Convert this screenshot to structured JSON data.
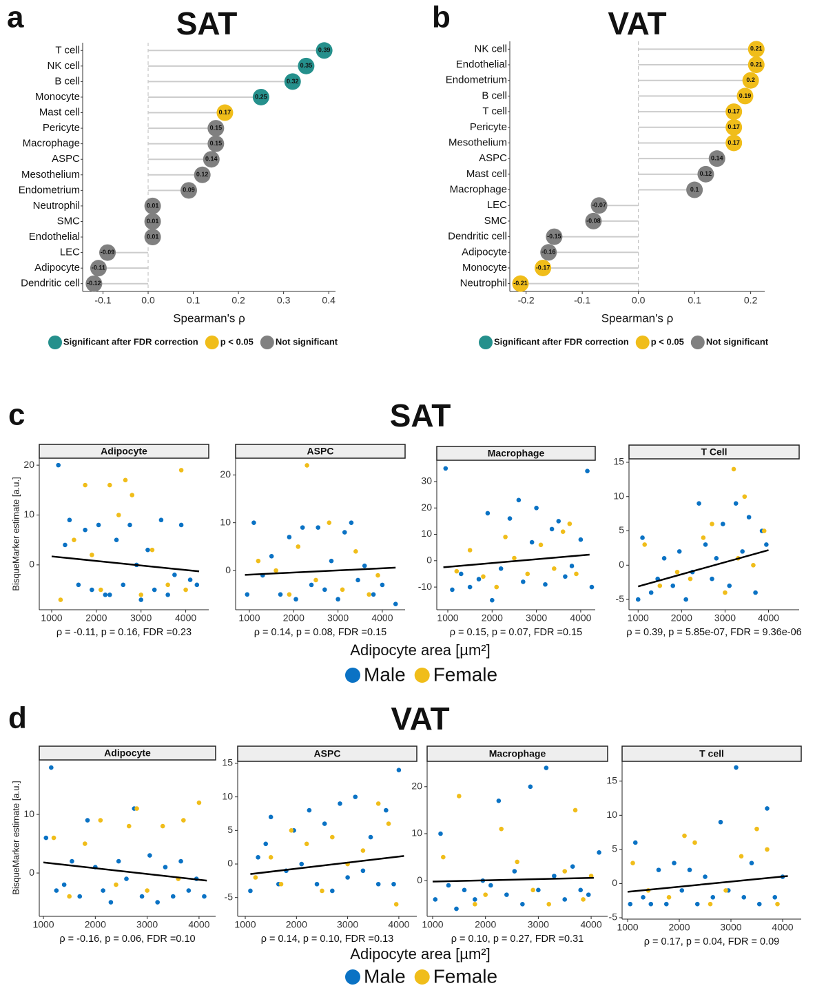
{
  "sections": [
    {
      "letter": "c",
      "title": "SAT",
      "x_label": "Adipocyte area [µm²]",
      "y_label": "BisqueMarker estimate [a.u.]"
    },
    {
      "letter": "d",
      "title": "VAT",
      "x_label": "Adipocyte area [µm²]",
      "y_label": "BisqueMarker estimate [a.u.]"
    }
  ],
  "chart_data": [
    {
      "type": "lollipop",
      "letter": "a",
      "title": "SAT",
      "x_label": "Spearman's ρ",
      "categories": [
        "T cell",
        "NK cell",
        "B cell",
        "Monocyte",
        "Mast cell",
        "Pericyte",
        "Macrophage",
        "ASPC",
        "Mesothelium",
        "Endometrium",
        "Neutrophil",
        "SMC",
        "Endothelial",
        "LEC",
        "Adipocyte",
        "Dendritic cell"
      ],
      "values": [
        0.39,
        0.35,
        0.32,
        0.25,
        0.17,
        0.15,
        0.15,
        0.14,
        0.12,
        0.09,
        0.01,
        0.01,
        0.01,
        -0.09,
        -0.11,
        -0.12
      ],
      "point_colors": [
        "#25908c",
        "#25908c",
        "#25908c",
        "#25908c",
        "#f0bd1a",
        "#808080",
        "#808080",
        "#808080",
        "#808080",
        "#808080",
        "#808080",
        "#808080",
        "#808080",
        "#808080",
        "#808080",
        "#808080"
      ],
      "xlim": [
        -0.145,
        0.415
      ],
      "xticks": [
        -0.1,
        {
          "value": 0,
          "label": "0.0"
        },
        0.1,
        0.2,
        0.3,
        0.4
      ],
      "legend": [
        {
          "label": "Significant after FDR correction",
          "color": "#25908c"
        },
        {
          "label": "p < 0.05",
          "color": "#f0bd1a"
        },
        {
          "label": "Not significant",
          "color": "#808080"
        }
      ]
    },
    {
      "type": "lollipop",
      "letter": "b",
      "title": "VAT",
      "x_label": "Spearman's ρ",
      "categories": [
        "NK cell",
        "Endothelial",
        "Endometrium",
        "B cell",
        "T cell",
        "Pericyte",
        "Mesothelium",
        "ASPC",
        "Mast cell",
        "Macrophage",
        "LEC",
        "SMC",
        "Dendritic cell",
        "Adipocyte",
        "Monocyte",
        "Neutrophil"
      ],
      "values": [
        0.21,
        0.21,
        0.2,
        0.19,
        0.17,
        0.17,
        0.17,
        0.14,
        0.12,
        0.1,
        -0.07,
        -0.08,
        -0.15,
        -0.16,
        -0.17,
        -0.21
      ],
      "point_colors": [
        "#f0bd1a",
        "#f0bd1a",
        "#f0bd1a",
        "#f0bd1a",
        "#f0bd1a",
        "#f0bd1a",
        "#f0bd1a",
        "#808080",
        "#808080",
        "#808080",
        "#808080",
        "#808080",
        "#808080",
        "#808080",
        "#f0bd1a",
        "#f0bd1a"
      ],
      "xlim": [
        -0.229,
        0.225
      ],
      "xticks": [
        -0.2,
        -0.1,
        {
          "value": 0,
          "label": "0.0"
        },
        0.1,
        0.2
      ],
      "legend": [
        {
          "label": "Significant after FDR correction",
          "color": "#25908c"
        },
        {
          "label": "p < 0.05",
          "color": "#f0bd1a"
        },
        {
          "label": "Not significant",
          "color": "#808080"
        }
      ]
    },
    {
      "type": "scatter",
      "title": "Adipocyte",
      "annotation": "ρ = -0.11, p = 0.16, FDR =0.23",
      "xlim": [
        723,
        4515
      ],
      "ylim": [
        -9,
        21.4
      ],
      "xticks": [
        1000,
        2000,
        3000,
        4000
      ],
      "yticks": [
        0,
        10,
        20
      ],
      "series": [
        {
          "name": "Male",
          "color": "#0a72c4",
          "x": [
            1150,
            1300,
            1400,
            1600,
            1750,
            1900,
            2050,
            2200,
            2300,
            2450,
            2600,
            2750,
            2900,
            3000,
            3150,
            3300,
            3450,
            3600,
            3750,
            3900,
            4100,
            4250
          ],
          "values": [
            20,
            4,
            9,
            -4,
            7,
            -5,
            8,
            -6,
            -6,
            5,
            -4,
            8,
            0,
            -7,
            3,
            -5,
            9,
            -6,
            -2,
            8,
            -3,
            -4
          ]
        },
        {
          "name": "Female",
          "color": "#f0bd1a",
          "x": [
            1200,
            1500,
            1750,
            1900,
            2100,
            2300,
            2500,
            2650,
            2800,
            3000,
            3250,
            3600,
            3900,
            4000
          ],
          "values": [
            -7,
            5,
            16,
            2,
            -5,
            16,
            10,
            17,
            14,
            -6,
            3,
            -4,
            19,
            -5
          ]
        }
      ],
      "fit": {
        "x": [
          1000,
          4300
        ],
        "y": [
          1.7,
          -1.3
        ]
      }
    },
    {
      "type": "scatter",
      "title": "ASPC",
      "annotation": "ρ = 0.14, p = 0.08, FDR =0.15",
      "xlim": [
        689,
        4514
      ],
      "ylim": [
        -8.2,
        23.5
      ],
      "xticks": [
        1000,
        2000,
        3000,
        4000
      ],
      "yticks": [
        0,
        10,
        20
      ],
      "series": [
        {
          "name": "Male",
          "color": "#0a72c4",
          "x": [
            950,
            1100,
            1300,
            1500,
            1700,
            1900,
            2050,
            2200,
            2400,
            2550,
            2700,
            2850,
            3000,
            3150,
            3300,
            3450,
            3600,
            3800,
            4000,
            4300
          ],
          "values": [
            -5,
            10,
            -1,
            3,
            -5,
            7,
            -6,
            9,
            -3,
            9,
            -4,
            2,
            -6,
            8,
            10,
            -2,
            1,
            -5,
            -3,
            -7
          ]
        },
        {
          "name": "Female",
          "color": "#f0bd1a",
          "x": [
            1200,
            1600,
            1900,
            2100,
            2300,
            2500,
            2800,
            3100,
            3400,
            3700,
            3900
          ],
          "values": [
            2,
            0,
            -5,
            5,
            22,
            -2,
            10,
            -4,
            4,
            -5,
            -1
          ]
        }
      ],
      "fit": {
        "x": [
          900,
          4300
        ],
        "y": [
          -0.9,
          0.6
        ]
      }
    },
    {
      "type": "scatter",
      "title": "Macrophage",
      "annotation": "ρ = 0.15, p = 0.07, FDR =0.15",
      "xlim": [
        751,
        4328
      ],
      "ylim": [
        -18.6,
        38.1
      ],
      "xticks": [
        1000,
        2000,
        3000,
        4000
      ],
      "yticks": [
        -10,
        0,
        10,
        20,
        30
      ],
      "series": [
        {
          "name": "Male",
          "color": "#0a72c4",
          "x": [
            950,
            1100,
            1300,
            1500,
            1700,
            1900,
            2000,
            2200,
            2400,
            2600,
            2700,
            2900,
            3000,
            3200,
            3350,
            3500,
            3650,
            3800,
            4000,
            4150,
            4250
          ],
          "values": [
            35,
            -11,
            -5,
            -10,
            -7,
            18,
            -15,
            -3,
            16,
            23,
            -8,
            7,
            20,
            -9,
            12,
            15,
            -6,
            -2,
            8,
            34,
            -10
          ]
        },
        {
          "name": "Female",
          "color": "#f0bd1a",
          "x": [
            1200,
            1500,
            1800,
            2100,
            2300,
            2500,
            2800,
            3100,
            3400,
            3600,
            3750,
            3900
          ],
          "values": [
            -4,
            4,
            -6,
            -10,
            9,
            1,
            -5,
            6,
            -3,
            11,
            14,
            -5
          ]
        }
      ],
      "fit": {
        "x": [
          900,
          4200
        ],
        "y": [
          -2.5,
          2.3
        ]
      }
    },
    {
      "type": "scatter",
      "title": "T Cell",
      "annotation": "ρ = 0.39, p = 5.85e-07, FDR = 9.36e-06",
      "xlim": [
        790,
        4705
      ],
      "ylim": [
        -6.5,
        15.5
      ],
      "xticks": [
        1000,
        2000,
        3000,
        4000
      ],
      "yticks": [
        -5,
        0,
        5,
        10,
        15
      ],
      "series": [
        {
          "name": "Male",
          "color": "#0a72c4",
          "x": [
            1000,
            1100,
            1300,
            1450,
            1600,
            1800,
            1950,
            2100,
            2250,
            2400,
            2550,
            2700,
            2800,
            2950,
            3100,
            3250,
            3400,
            3550,
            3700,
            3850,
            3950
          ],
          "values": [
            -5,
            4,
            -4,
            -2,
            1,
            -3,
            2,
            -5,
            -1,
            9,
            3,
            -2,
            1,
            6,
            -3,
            9,
            2,
            7,
            -4,
            5,
            3
          ]
        },
        {
          "name": "Female",
          "color": "#f0bd1a",
          "x": [
            1150,
            1500,
            1900,
            2200,
            2500,
            2700,
            3000,
            3200,
            3300,
            3450,
            3650,
            3900
          ],
          "values": [
            3,
            -3,
            -1,
            -2,
            4,
            6,
            -4,
            14,
            1,
            10,
            0,
            5
          ]
        }
      ],
      "fit": {
        "x": [
          1000,
          4000
        ],
        "y": [
          -3.1,
          2.2
        ]
      }
    },
    {
      "type": "scatter",
      "title": "Adipocyte",
      "annotation": "ρ = -0.16, p = 0.06, FDR =0.10",
      "xlim": [
        920,
        4320
      ],
      "ylim": [
        -7.4,
        19.3
      ],
      "xticks": [
        1000,
        2000,
        3000,
        4000
      ],
      "yticks": [
        0,
        10
      ],
      "series": [
        {
          "name": "Male",
          "color": "#0a72c4",
          "x": [
            1050,
            1150,
            1250,
            1400,
            1550,
            1700,
            1850,
            2000,
            2150,
            2300,
            2450,
            2600,
            2750,
            2900,
            3050,
            3200,
            3350,
            3500,
            3650,
            3800,
            3950,
            4100
          ],
          "values": [
            6,
            18,
            -3,
            -2,
            2,
            -4,
            9,
            1,
            -3,
            -5,
            2,
            -1,
            11,
            -4,
            3,
            -5,
            1,
            -4,
            2,
            -3,
            -1,
            -4
          ]
        },
        {
          "name": "Female",
          "color": "#f0bd1a",
          "x": [
            1200,
            1500,
            1800,
            2100,
            2400,
            2650,
            2800,
            3000,
            3300,
            3600,
            3700,
            4000
          ],
          "values": [
            6,
            -4,
            5,
            9,
            -2,
            8,
            11,
            -3,
            8,
            -1,
            9,
            12
          ]
        }
      ],
      "fit": {
        "x": [
          1000,
          4150
        ],
        "y": [
          1.8,
          -1.3
        ]
      }
    },
    {
      "type": "scatter",
      "title": "ASPC",
      "annotation": "ρ = 0.14, p = 0.10, FDR =0.13",
      "xlim": [
        852,
        4351
      ],
      "ylim": [
        -7.8,
        15.3
      ],
      "xticks": [
        1000,
        2000,
        3000,
        4000
      ],
      "yticks": [
        -5,
        0,
        5,
        10,
        15
      ],
      "series": [
        {
          "name": "Male",
          "color": "#0a72c4",
          "x": [
            1100,
            1250,
            1400,
            1500,
            1650,
            1800,
            1950,
            2100,
            2250,
            2400,
            2550,
            2700,
            2850,
            3000,
            3150,
            3300,
            3450,
            3600,
            3750,
            3900,
            4000
          ],
          "values": [
            -4,
            1,
            3,
            7,
            -3,
            -1,
            5,
            0,
            8,
            -3,
            6,
            -4,
            9,
            -2,
            10,
            -1,
            4,
            -3,
            8,
            -3,
            14
          ]
        },
        {
          "name": "Female",
          "color": "#f0bd1a",
          "x": [
            1200,
            1500,
            1700,
            1900,
            2200,
            2500,
            2700,
            3000,
            3300,
            3600,
            3800,
            3950
          ],
          "values": [
            -2,
            1,
            -3,
            5,
            3,
            -4,
            4,
            0,
            2,
            9,
            6,
            -6
          ]
        }
      ],
      "fit": {
        "x": [
          1100,
          4100
        ],
        "y": [
          -1.5,
          1.2
        ]
      }
    },
    {
      "type": "scatter",
      "title": "Macrophage",
      "annotation": "ρ = 0.10, p = 0.27, FDR =0.31",
      "xlim": [
        896,
        4312
      ],
      "ylim": [
        -7.6,
        25.4
      ],
      "xticks": [
        1000,
        2000,
        3000,
        4000
      ],
      "yticks": [
        0,
        10,
        20
      ],
      "series": [
        {
          "name": "Male",
          "color": "#0a72c4",
          "x": [
            1050,
            1150,
            1300,
            1450,
            1600,
            1800,
            1950,
            2100,
            2250,
            2400,
            2550,
            2700,
            2850,
            3000,
            3150,
            3300,
            3500,
            3650,
            3800,
            3950,
            4150
          ],
          "values": [
            -4,
            10,
            -1,
            -6,
            -2,
            -4,
            0,
            -1,
            17,
            -3,
            2,
            -5,
            20,
            -2,
            24,
            1,
            -4,
            3,
            -2,
            -3,
            6
          ]
        },
        {
          "name": "Female",
          "color": "#f0bd1a",
          "x": [
            1200,
            1500,
            1800,
            2000,
            2300,
            2600,
            2900,
            3200,
            3500,
            3700,
            3850,
            4000
          ],
          "values": [
            5,
            18,
            -5,
            -3,
            11,
            4,
            -2,
            -5,
            2,
            15,
            -4,
            1
          ]
        }
      ],
      "fit": {
        "x": [
          1000,
          4050
        ],
        "y": [
          -0.2,
          0.6
        ]
      }
    },
    {
      "type": "scatter",
      "title": "T cell",
      "annotation": "ρ = 0.17, p = 0.04, FDR = 0.09",
      "xlim": [
        893,
        4360
      ],
      "ylim": [
        -5.2,
        17.9
      ],
      "xticks": [
        1000,
        2000,
        3000,
        4000
      ],
      "yticks": [
        -5,
        0,
        5,
        10,
        15
      ],
      "series": [
        {
          "name": "Male",
          "color": "#0a72c4",
          "x": [
            1050,
            1150,
            1300,
            1450,
            1600,
            1750,
            1900,
            2050,
            2200,
            2350,
            2500,
            2650,
            2800,
            2950,
            3100,
            3250,
            3400,
            3550,
            3700,
            3850,
            4000
          ],
          "values": [
            -3,
            6,
            -2,
            -3,
            2,
            -3,
            3,
            -1,
            2,
            -3,
            1,
            -2,
            9,
            -1,
            17,
            -2,
            3,
            -3,
            11,
            -2,
            1
          ]
        },
        {
          "name": "Female",
          "color": "#f0bd1a",
          "x": [
            1100,
            1400,
            1800,
            2100,
            2300,
            2600,
            2900,
            3200,
            3500,
            3700,
            3900
          ],
          "values": [
            3,
            -1,
            -2,
            7,
            6,
            -3,
            -1,
            4,
            8,
            5,
            -3
          ]
        }
      ],
      "fit": {
        "x": [
          1000,
          4100
        ],
        "y": [
          -1.2,
          1.1
        ]
      }
    }
  ]
}
